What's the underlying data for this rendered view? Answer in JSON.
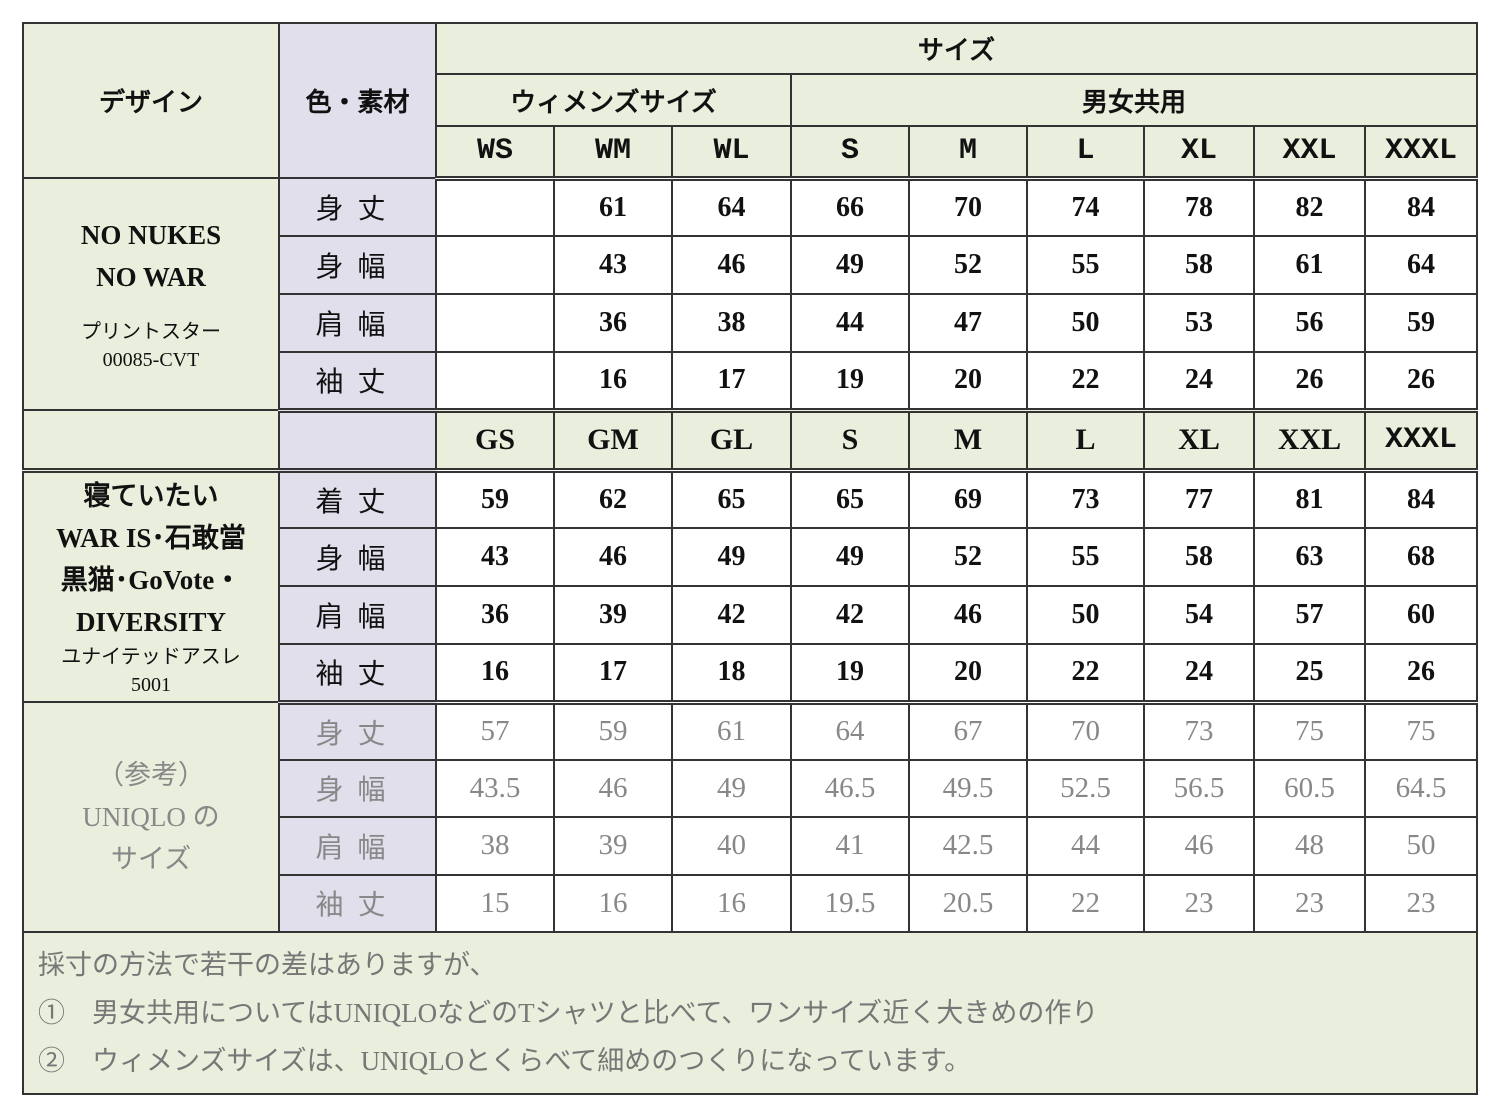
{
  "header": {
    "design": "デザイン",
    "color_material": "色・素材",
    "size": "サイズ",
    "womens": "ウィメンズサイズ",
    "unisex": "男女共用",
    "sizes1": [
      "WS",
      "WM",
      "WL",
      "S",
      "M",
      "L",
      "XL",
      "XXL",
      "XXXL"
    ],
    "sizes2": [
      "GS",
      "GM",
      "GL",
      "S",
      "M",
      "L",
      "XL",
      "XXL",
      "XXXL"
    ]
  },
  "section1": {
    "design_lines": [
      "NO NUKES",
      "NO WAR"
    ],
    "maker": "プリントスター",
    "code": "00085-CVT",
    "rows": [
      {
        "label": "身丈",
        "values": [
          "",
          "61",
          "64",
          "66",
          "70",
          "74",
          "78",
          "82",
          "84"
        ]
      },
      {
        "label": "身幅",
        "values": [
          "",
          "43",
          "46",
          "49",
          "52",
          "55",
          "58",
          "61",
          "64"
        ]
      },
      {
        "label": "肩幅",
        "values": [
          "",
          "36",
          "38",
          "44",
          "47",
          "50",
          "53",
          "56",
          "59"
        ]
      },
      {
        "label": "袖丈",
        "values": [
          "",
          "16",
          "17",
          "19",
          "20",
          "22",
          "24",
          "26",
          "26"
        ]
      }
    ]
  },
  "section2": {
    "design_lines": [
      "寝ていたい",
      "WAR IS･石敢當",
      "黒猫･GoVote・",
      "DIVERSITY"
    ],
    "maker": "ユナイテッドアスレ",
    "code": "5001",
    "rows": [
      {
        "label": "着丈",
        "values": [
          "59",
          "62",
          "65",
          "65",
          "69",
          "73",
          "77",
          "81",
          "84"
        ]
      },
      {
        "label": "身幅",
        "values": [
          "43",
          "46",
          "49",
          "49",
          "52",
          "55",
          "58",
          "63",
          "68"
        ]
      },
      {
        "label": "肩幅",
        "values": [
          "36",
          "39",
          "42",
          "42",
          "46",
          "50",
          "54",
          "57",
          "60"
        ]
      },
      {
        "label": "袖丈",
        "values": [
          "16",
          "17",
          "18",
          "19",
          "20",
          "22",
          "24",
          "25",
          "26"
        ]
      }
    ]
  },
  "reference": {
    "design_lines": [
      "（参考）",
      "UNIQLO の",
      "サイズ"
    ],
    "rows": [
      {
        "label": "身丈",
        "values": [
          "57",
          "59",
          "61",
          "64",
          "67",
          "70",
          "73",
          "75",
          "75"
        ]
      },
      {
        "label": "身幅",
        "values": [
          "43.5",
          "46",
          "49",
          "46.5",
          "49.5",
          "52.5",
          "56.5",
          "60.5",
          "64.5"
        ]
      },
      {
        "label": "肩幅",
        "values": [
          "38",
          "39",
          "40",
          "41",
          "42.5",
          "44",
          "46",
          "48",
          "50"
        ]
      },
      {
        "label": "袖丈",
        "values": [
          "15",
          "16",
          "16",
          "19.5",
          "20.5",
          "22",
          "23",
          "23",
          "23"
        ]
      }
    ]
  },
  "notes": [
    "採寸の方法で若干の差はありますが、",
    "①　男女共用についてはUNIQLOなどのTシャツと比べて、ワンサイズ近く大きめの作り",
    "②　ウィメンズサイズは、UNIQLOとくらべて細めのつくりになっています。"
  ],
  "colors": {
    "green": "#e9efdc",
    "lavender": "#e2dfec",
    "border": "#333333",
    "reference_text": "#888888"
  }
}
